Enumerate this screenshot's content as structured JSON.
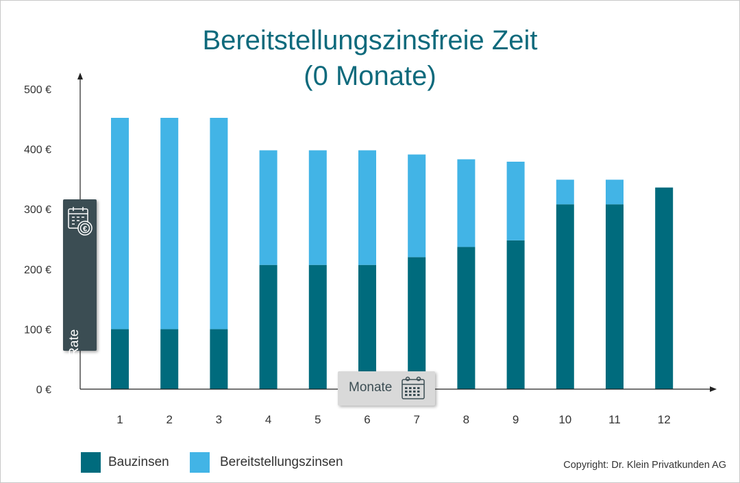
{
  "chart_data": {
    "type": "bar",
    "stacked": true,
    "title": "Bereitstellungszinsfreie Zeit",
    "subtitle": "(0 Monate)",
    "xlabel": "Monate",
    "ylabel": "monatliche Rate",
    "categories": [
      "1",
      "2",
      "3",
      "4",
      "5",
      "6",
      "7",
      "8",
      "9",
      "10",
      "11",
      "12"
    ],
    "y_ticks": [
      "0 €",
      "100 €",
      "200 €",
      "300 €",
      "400 €",
      "500 €"
    ],
    "y_tick_values": [
      0,
      100,
      200,
      300,
      400,
      500
    ],
    "ylim": [
      0,
      500
    ],
    "series": [
      {
        "name": "Bauzinsen",
        "color": "#006b7d",
        "values": [
          100,
          100,
          100,
          207,
          207,
          207,
          220,
          237,
          248,
          308,
          308,
          336
        ]
      },
      {
        "name": "Bereitstellungszinsen",
        "color": "#42b4e6",
        "values": [
          352,
          352,
          352,
          191,
          191,
          191,
          171,
          146,
          131,
          41,
          41,
          0
        ]
      }
    ],
    "grid": false,
    "legend_position": "bottom-left",
    "ylabel_icon": "calendar-euro-icon",
    "xlabel_icon": "calendar-icon"
  },
  "copyright": "Copyright: Dr. Klein Privatkunden AG"
}
